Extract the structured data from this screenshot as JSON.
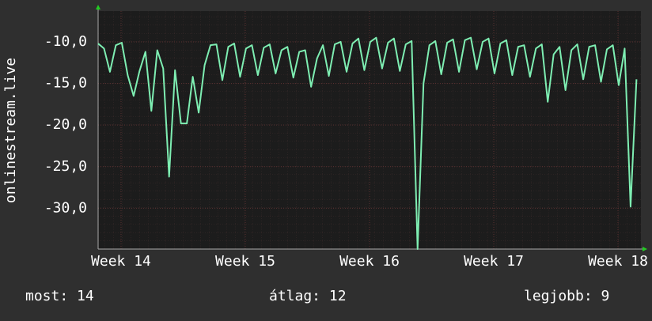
{
  "chart_data": {
    "type": "line",
    "ylabel": "onlinestream.live",
    "xlim": [
      0,
      734
    ],
    "xticks": [
      {
        "value": 31,
        "label": "Week 14"
      },
      {
        "value": 199,
        "label": "Week 15"
      },
      {
        "value": 367,
        "label": "Week 16"
      },
      {
        "value": 535,
        "label": "Week 17"
      },
      {
        "value": 703,
        "label": "Week 18"
      }
    ],
    "ylim": [
      -34.9,
      -6.3
    ],
    "yticks": [
      {
        "value": -10,
        "label": "-10,0"
      },
      {
        "value": -15,
        "label": "-15,0"
      },
      {
        "value": -20,
        "label": "-20,0"
      },
      {
        "value": -25,
        "label": "-25,0"
      },
      {
        "value": -30,
        "label": "-30,0"
      }
    ],
    "grid": true,
    "color": "#7eeeb2",
    "x": [
      0,
      8,
      16,
      24,
      32,
      40,
      48,
      56,
      64,
      72,
      80,
      88,
      96,
      104,
      112,
      120,
      128,
      136,
      144,
      152,
      160,
      168,
      176,
      184,
      192,
      200,
      208,
      216,
      224,
      232,
      240,
      248,
      256,
      264,
      272,
      280,
      288,
      296,
      304,
      312,
      320,
      328,
      336,
      344,
      352,
      360,
      368,
      376,
      384,
      392,
      400,
      408,
      416,
      424,
      432,
      440,
      448,
      456,
      464,
      472,
      480,
      488,
      496,
      504,
      512,
      520,
      528,
      536,
      544,
      552,
      560,
      568,
      576,
      584,
      592,
      600,
      608,
      616,
      624,
      632,
      640,
      648,
      656,
      664,
      672,
      680,
      688,
      696,
      704,
      712,
      720,
      728
    ],
    "values": [
      -10.2,
      -10.8,
      -13.6,
      -10.4,
      -10.1,
      -14.0,
      -16.5,
      -13.5,
      -11.2,
      -18.3,
      -11.0,
      -13.2,
      -26.2,
      -13.4,
      -19.8,
      -19.8,
      -14.2,
      -18.5,
      -12.8,
      -10.4,
      -10.3,
      -14.6,
      -10.6,
      -10.2,
      -14.2,
      -10.8,
      -10.4,
      -14.0,
      -10.7,
      -10.3,
      -13.8,
      -11.0,
      -10.6,
      -14.3,
      -11.2,
      -11.0,
      -15.4,
      -12.0,
      -10.4,
      -14.1,
      -10.3,
      -10.0,
      -13.6,
      -10.2,
      -9.6,
      -13.4,
      -10.0,
      -9.5,
      -13.2,
      -10.1,
      -9.6,
      -13.5,
      -10.3,
      -9.9,
      -34.9,
      -15.0,
      -10.4,
      -9.9,
      -13.9,
      -10.1,
      -9.7,
      -13.6,
      -9.8,
      -9.5,
      -13.3,
      -10.0,
      -9.6,
      -13.8,
      -10.2,
      -9.8,
      -14.0,
      -10.6,
      -10.4,
      -14.2,
      -10.8,
      -10.3,
      -17.2,
      -11.5,
      -10.6,
      -15.8,
      -11.0,
      -10.3,
      -14.5,
      -10.6,
      -10.4,
      -14.8,
      -10.9,
      -10.4,
      -15.2,
      -10.8,
      -29.8,
      -14.5
    ],
    "stats": [
      {
        "label": "most:",
        "value": 14
      },
      {
        "label": "átlag:",
        "value": 12
      },
      {
        "label": "legjobb:",
        "value": 9
      }
    ]
  }
}
